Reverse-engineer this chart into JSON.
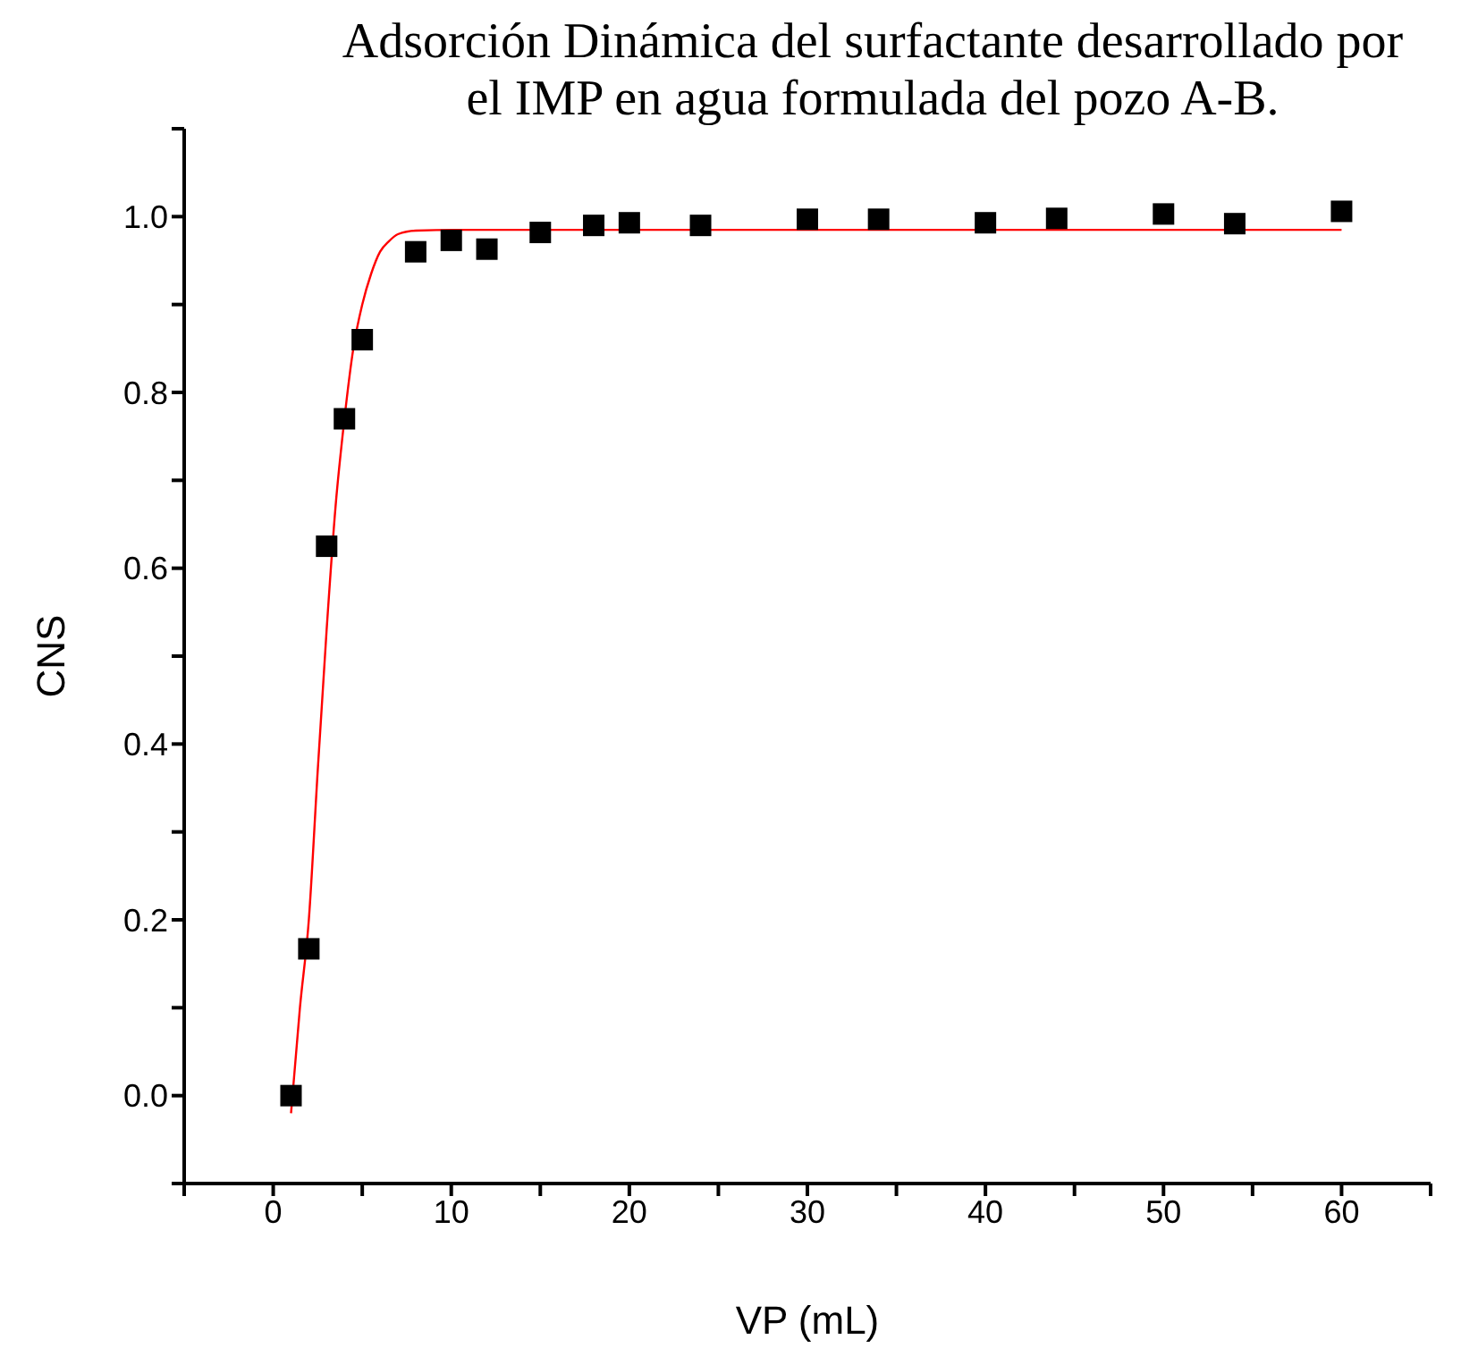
{
  "chart_data": {
    "type": "scatter",
    "title": "Adsorción Dinámica del surfactante desarrollado por el IMP en agua formulada del pozo A-B.",
    "xlabel": "VP (mL)",
    "ylabel": "CNS",
    "xlim": [
      -5,
      65
    ],
    "xticks": [
      {
        "value": -5,
        "label": null
      },
      0,
      {
        "value": 5,
        "label": null
      },
      10,
      {
        "value": 15,
        "label": null
      },
      20,
      {
        "value": 25,
        "label": null
      },
      30,
      {
        "value": 35,
        "label": null
      },
      40,
      {
        "value": 45,
        "label": null
      },
      50,
      {
        "value": 55,
        "label": null
      },
      60,
      {
        "value": 65,
        "label": null
      }
    ],
    "ylim": [
      -0.1,
      1.1
    ],
    "yticks": [
      {
        "value": -0.1,
        "label": null
      },
      {
        "value": 0,
        "label": "0.0"
      },
      {
        "value": 0.1,
        "label": null
      },
      {
        "value": 0.2,
        "label": "0.2"
      },
      {
        "value": 0.3,
        "label": null
      },
      {
        "value": 0.4,
        "label": "0.4"
      },
      {
        "value": 0.5,
        "label": null
      },
      {
        "value": 0.6,
        "label": "0.6"
      },
      {
        "value": 0.7,
        "label": null
      },
      {
        "value": 0.8,
        "label": "0.8"
      },
      {
        "value": 0.9,
        "label": null
      },
      {
        "value": 1.0,
        "label": "1.0"
      },
      {
        "value": 1.1,
        "label": null
      }
    ],
    "grid": false,
    "legend": false,
    "series": [
      {
        "color": "#000000",
        "marker": "square",
        "x": [
          1,
          2,
          3,
          4,
          5,
          8,
          10,
          12,
          15,
          18,
          20,
          24,
          30,
          34,
          40,
          44,
          50,
          54,
          60
        ],
        "values": [
          0,
          0.167,
          0.625,
          0.77,
          0.86,
          0.96,
          0.973,
          0.963,
          0.982,
          0.99,
          0.993,
          0.99,
          0.997,
          0.997,
          0.993,
          0.998,
          1.003,
          0.992,
          1.006
        ]
      },
      {
        "type": "line",
        "color": "#ff0000",
        "marker": "none",
        "line_style": "solid",
        "x": [
          1,
          1.5,
          2,
          2.5,
          3,
          3.5,
          4,
          4.5,
          5,
          5.5,
          6,
          6.5,
          7,
          8,
          11,
          60
        ],
        "values": [
          -0.02,
          0.1,
          0.2,
          0.37,
          0.53,
          0.67,
          0.77,
          0.85,
          0.9,
          0.935,
          0.96,
          0.972,
          0.98,
          0.984,
          0.985,
          0.985
        ]
      }
    ]
  }
}
